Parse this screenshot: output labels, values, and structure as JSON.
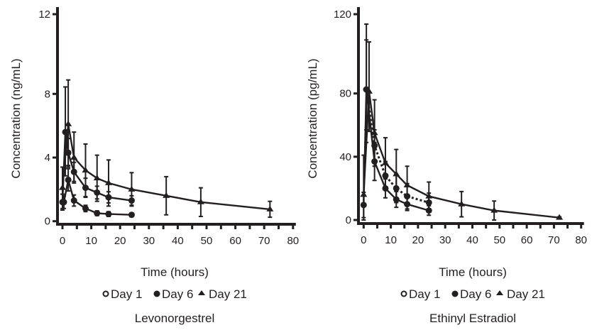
{
  "chart_data": [
    {
      "type": "line",
      "title": "Levonorgestrel",
      "xlabel": "Time (hours)",
      "ylabel": "Concentration (ng/mL)",
      "xlim": [
        0,
        80
      ],
      "xticks": [
        0,
        10,
        20,
        30,
        40,
        50,
        60,
        70,
        80
      ],
      "yticks": [
        0,
        4,
        8,
        12
      ],
      "ylim": [
        0,
        12
      ],
      "grid": false,
      "legend_position": "bottom",
      "series": [
        {
          "name": "Day 1",
          "marker": "open-circle",
          "line_style": "solid",
          "x": [
            0.5,
            2,
            4,
            8,
            12,
            16,
            24
          ],
          "y": [
            1.2,
            2.6,
            1.3,
            0.8,
            0.5,
            0.45,
            0.4
          ],
          "error": [
            0.4,
            0.7,
            0.35,
            0.2,
            0.15,
            0.15,
            0.12
          ]
        },
        {
          "name": "Day 6",
          "marker": "filled-circle",
          "line_style": "solid",
          "x": [
            0,
            1,
            2,
            4,
            8,
            12,
            16,
            24
          ],
          "y": [
            1.2,
            5.6,
            4.3,
            3.1,
            2.1,
            1.8,
            1.5,
            1.3
          ],
          "error": [
            0.5,
            2.75,
            0.9,
            0.6,
            0.6,
            0.4,
            0.35,
            0.3
          ]
        },
        {
          "name": "Day 21",
          "marker": "triangle",
          "line_style": "solid",
          "x": [
            0,
            2,
            4,
            8,
            12,
            16,
            24,
            36,
            48,
            72
          ],
          "y": [
            2.1,
            6.1,
            4.0,
            3.2,
            2.7,
            2.4,
            2.0,
            1.6,
            1.2,
            0.75
          ],
          "error": [
            1.3,
            2.6,
            1.6,
            1.65,
            1.45,
            1.45,
            1.05,
            1.2,
            0.9,
            0.5
          ]
        }
      ]
    },
    {
      "type": "line",
      "title": "Ethinyl Estradiol",
      "xlabel": "Time (hours)",
      "ylabel": "Concentration (pg/mL)",
      "xlim": [
        0,
        80
      ],
      "xticks": [
        0,
        10,
        20,
        30,
        40,
        50,
        60,
        70,
        80
      ],
      "yticks": [
        0,
        40,
        80,
        120
      ],
      "ylim": [
        0,
        120
      ],
      "grid": false,
      "legend_position": "bottom",
      "series": [
        {
          "name": "Day 1",
          "marker": "open-circle",
          "line_style": "dotted",
          "x": [
            1,
            4,
            8,
            12,
            16,
            24
          ],
          "y": [
            82,
            47,
            28,
            20,
            15,
            11
          ],
          "error": [
            33,
            10,
            9,
            9,
            8,
            6
          ]
        },
        {
          "name": "Day 6",
          "marker": "filled-circle",
          "line_style": "solid",
          "x": [
            0,
            1,
            4,
            8,
            12,
            16,
            24
          ],
          "y": [
            9.5,
            82,
            37,
            20,
            13,
            10,
            6
          ],
          "error": [
            8,
            25,
            12,
            6,
            5,
            4,
            3
          ]
        },
        {
          "name": "Day 21",
          "marker": "triangle",
          "line_style": "solid",
          "x": [
            0,
            2,
            4,
            8,
            12,
            16,
            24,
            36,
            48,
            72
          ],
          "y": [
            16,
            81,
            55,
            36,
            29,
            22,
            15,
            10,
            6,
            1.5
          ],
          "error": [
            25,
            25,
            21,
            16,
            15.6,
            12,
            9,
            8,
            6,
            0.5
          ]
        }
      ]
    }
  ],
  "colors": {
    "ink": "#231f20",
    "background": "#ffffff"
  }
}
